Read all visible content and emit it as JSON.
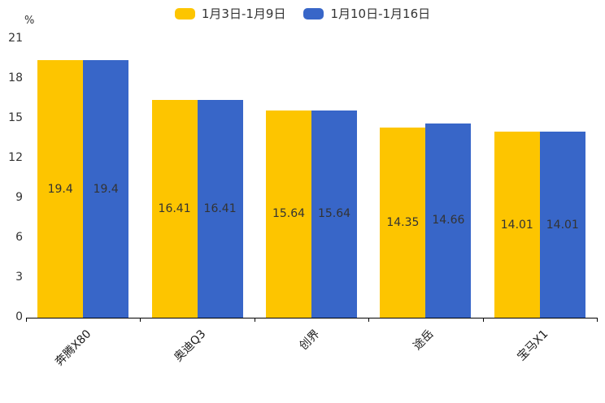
{
  "chart_data": {
    "type": "bar",
    "title": "",
    "xlabel": "",
    "ylabel": "%",
    "ylim": [
      0,
      21
    ],
    "yticks": [
      0,
      3,
      6,
      9,
      12,
      15,
      18,
      21
    ],
    "grid": false,
    "legend_position": "top",
    "value_label_position": "inside-center",
    "categories": [
      "奔腾X80",
      "奥迪Q3",
      "创界",
      "途岳",
      "宝马X1"
    ],
    "series": [
      {
        "name": "1月3日-1月9日",
        "color": "#FDC500",
        "values": [
          19.4,
          16.41,
          15.64,
          14.35,
          14.01
        ]
      },
      {
        "name": "1月10日-1月16日",
        "color": "#3866C8",
        "values": [
          19.4,
          16.41,
          15.64,
          14.66,
          14.01
        ]
      }
    ]
  },
  "axis": {
    "unit_label": "%"
  }
}
